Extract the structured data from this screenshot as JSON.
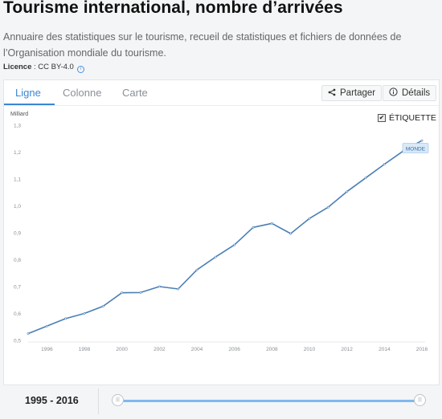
{
  "page": {
    "title": "Tourisme international, nombre d’arrivées",
    "subtitle": "Annuaire des statistiques sur le tourisme, recueil de statistiques et fichiers de données de l’Organisation mondiale du tourisme.",
    "license_label": "Licence",
    "license_value": " : CC BY-4.0",
    "info_icon": "info-icon"
  },
  "tabs": [
    {
      "label": "Ligne",
      "active": true
    },
    {
      "label": "Colonne",
      "active": false
    },
    {
      "label": "Carte",
      "active": false
    }
  ],
  "toolbar": {
    "share_label": "Partager",
    "share_icon": "share-icon",
    "details_label": "Détails",
    "details_icon": "info-icon"
  },
  "label_toggle": {
    "label": "ÉTIQUETTE",
    "checked": true
  },
  "footer": {
    "range_text": "1995 - 2016"
  },
  "colors": {
    "accent": "#3a86d6",
    "line": "#4a7fb5",
    "slider": "#7fb8ee"
  },
  "chart_data": {
    "type": "line",
    "y_unit_label": "Milliard",
    "yticks": [
      "0,5",
      "0,6",
      "0,7",
      "0,8",
      "0,9",
      "1,0",
      "1,1",
      "1,2",
      "1,3"
    ],
    "ylim": [
      0.5,
      1.3
    ],
    "xticks": [
      "1996",
      "1998",
      "2000",
      "2002",
      "2004",
      "2006",
      "2008",
      "2010",
      "2012",
      "2014",
      "2016"
    ],
    "xlim": [
      1995,
      2016
    ],
    "grid": false,
    "series": [
      {
        "name": "MONDE",
        "x": [
          1995,
          1996,
          1997,
          1998,
          1999,
          2000,
          2001,
          2002,
          2003,
          2004,
          2005,
          2006,
          2007,
          2008,
          2009,
          2010,
          2011,
          2012,
          2013,
          2014,
          2015,
          2016
        ],
        "y": [
          0.525,
          0.553,
          0.581,
          0.6,
          0.627,
          0.677,
          0.678,
          0.7,
          0.691,
          0.762,
          0.81,
          0.855,
          0.92,
          0.935,
          0.897,
          0.953,
          0.995,
          1.053,
          1.104,
          1.155,
          1.204,
          1.243
        ]
      }
    ],
    "end_label": "MONDE"
  }
}
